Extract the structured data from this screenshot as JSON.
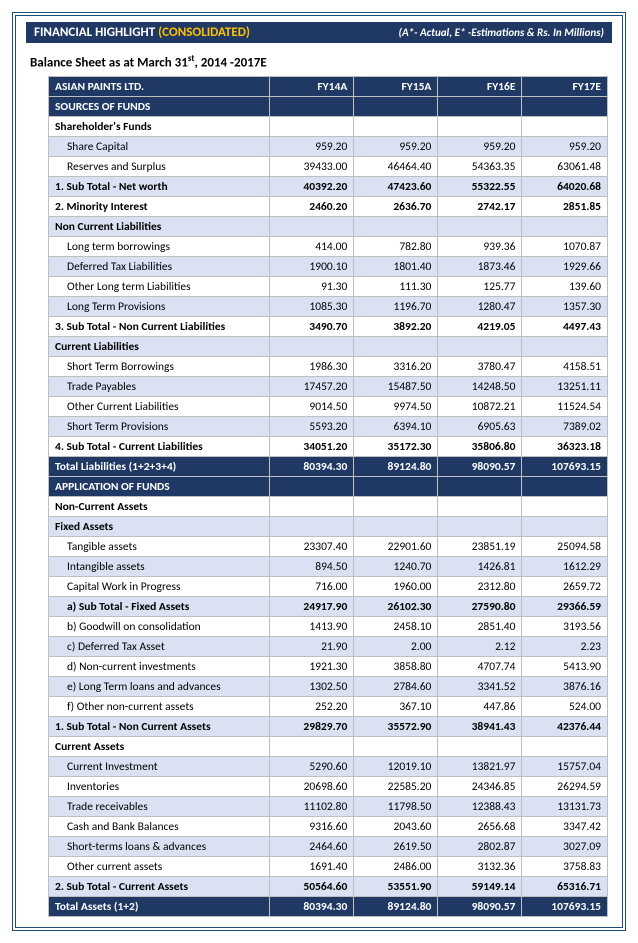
{
  "meta": {
    "title_left_main": "FINANCIAL HIGHLIGHT ",
    "title_left_yellow": "(CONSOLIDATED)",
    "title_right": "(A*- Actual, E* -Estimations & Rs. In Millions)",
    "subtitle_pre": "Balance Sheet as at March 31",
    "subtitle_sup": "st",
    "subtitle_post": ", 2014 -2017E"
  },
  "columns": [
    "FY14A",
    "FY15A",
    "FY16E",
    "FY17E"
  ],
  "company": "ASIAN PAINTS LTD.",
  "rows": [
    {
      "style": "section",
      "label": "SOURCES OF FUNDS",
      "vals": [
        "",
        "",
        "",
        ""
      ]
    },
    {
      "style": "bold",
      "label": "Shareholder's Funds",
      "vals": [
        "",
        "",
        "",
        ""
      ]
    },
    {
      "style": "alt",
      "indent": 1,
      "label": "Share Capital",
      "vals": [
        "959.20",
        "959.20",
        "959.20",
        "959.20"
      ]
    },
    {
      "style": "plain",
      "indent": 1,
      "label": "Reserves and Surplus",
      "vals": [
        "39433.00",
        "46464.40",
        "54363.35",
        "63061.48"
      ]
    },
    {
      "style": "bold alt",
      "label": "1. Sub Total - Net worth",
      "vals": [
        "40392.20",
        "47423.60",
        "55322.55",
        "64020.68"
      ]
    },
    {
      "style": "bold",
      "label": "2. Minority Interest",
      "vals": [
        "2460.20",
        "2636.70",
        "2742.17",
        "2851.85"
      ]
    },
    {
      "style": "bold alt",
      "label": "Non Current Liabilities",
      "vals": [
        "",
        "",
        "",
        ""
      ]
    },
    {
      "style": "plain",
      "indent": 1,
      "label": "Long term borrowings",
      "vals": [
        "414.00",
        "782.80",
        "939.36",
        "1070.87"
      ]
    },
    {
      "style": "alt",
      "indent": 1,
      "label": "Deferred Tax Liabilities",
      "vals": [
        "1900.10",
        "1801.40",
        "1873.46",
        "1929.66"
      ]
    },
    {
      "style": "plain",
      "indent": 1,
      "label": "Other Long term Liabilities",
      "vals": [
        "91.30",
        "111.30",
        "125.77",
        "139.60"
      ]
    },
    {
      "style": "alt",
      "indent": 1,
      "label": "Long Term Provisions",
      "vals": [
        "1085.30",
        "1196.70",
        "1280.47",
        "1357.30"
      ]
    },
    {
      "style": "bold",
      "label": "3. Sub Total - Non Current Liabilities",
      "vals": [
        "3490.70",
        "3892.20",
        "4219.05",
        "4497.43"
      ]
    },
    {
      "style": "bold alt",
      "label": "Current Liabilities",
      "vals": [
        "",
        "",
        "",
        ""
      ]
    },
    {
      "style": "plain",
      "indent": 1,
      "label": "Short Term Borrowings",
      "vals": [
        "1986.30",
        "3316.20",
        "3780.47",
        "4158.51"
      ]
    },
    {
      "style": "alt",
      "indent": 1,
      "label": "Trade Payables",
      "vals": [
        "17457.20",
        "15487.50",
        "14248.50",
        "13251.11"
      ]
    },
    {
      "style": "plain",
      "indent": 1,
      "label": "Other Current Liabilities",
      "vals": [
        "9014.50",
        "9974.50",
        "10872.21",
        "11524.54"
      ]
    },
    {
      "style": "alt",
      "indent": 1,
      "label": "Short Term Provisions",
      "vals": [
        "5593.20",
        "6394.10",
        "6905.63",
        "7389.02"
      ]
    },
    {
      "style": "bold",
      "label": "4. Sub Total - Current Liabilities",
      "vals": [
        "34051.20",
        "35172.30",
        "35806.80",
        "36323.18"
      ]
    },
    {
      "style": "total",
      "label": "Total Liabilities (1+2+3+4)",
      "vals": [
        "80394.30",
        "89124.80",
        "98090.57",
        "107693.15"
      ]
    },
    {
      "style": "section",
      "label": "APPLICATION OF FUNDS",
      "vals": [
        "",
        "",
        "",
        ""
      ]
    },
    {
      "style": "bold",
      "label": "Non-Current Assets",
      "vals": [
        "",
        "",
        "",
        ""
      ]
    },
    {
      "style": "bold alt",
      "label": "Fixed Assets",
      "vals": [
        "",
        "",
        "",
        ""
      ]
    },
    {
      "style": "plain",
      "indent": 1,
      "label": "Tangible assets",
      "vals": [
        "23307.40",
        "22901.60",
        "23851.19",
        "25094.58"
      ]
    },
    {
      "style": "alt",
      "indent": 1,
      "label": "Intangible assets",
      "vals": [
        "894.50",
        "1240.70",
        "1426.81",
        "1612.29"
      ]
    },
    {
      "style": "plain",
      "indent": 1,
      "label": "Capital Work in Progress",
      "vals": [
        "716.00",
        "1960.00",
        "2312.80",
        "2659.72"
      ]
    },
    {
      "style": "bold alt",
      "indent": 1,
      "label": "a) Sub Total - Fixed Assets",
      "vals": [
        "24917.90",
        "26102.30",
        "27590.80",
        "29366.59"
      ]
    },
    {
      "style": "plain",
      "indent": 1,
      "label": "b) Goodwill on consolidation",
      "vals": [
        "1413.90",
        "2458.10",
        "2851.40",
        "3193.56"
      ]
    },
    {
      "style": "alt",
      "indent": 1,
      "label": "c) Deferred Tax Asset",
      "vals": [
        "21.90",
        "2.00",
        "2.12",
        "2.23"
      ]
    },
    {
      "style": "plain",
      "indent": 1,
      "label": "d) Non-current investments",
      "vals": [
        "1921.30",
        "3858.80",
        "4707.74",
        "5413.90"
      ]
    },
    {
      "style": "alt",
      "indent": 1,
      "label": "e) Long Term loans and advances",
      "vals": [
        "1302.50",
        "2784.60",
        "3341.52",
        "3876.16"
      ]
    },
    {
      "style": "plain",
      "indent": 1,
      "label": "f) Other non-current assets",
      "vals": [
        "252.20",
        "367.10",
        "447.86",
        "524.00"
      ]
    },
    {
      "style": "bold alt",
      "label": "1. Sub Total - Non Current Assets",
      "vals": [
        "29829.70",
        "35572.90",
        "38941.43",
        "42376.44"
      ]
    },
    {
      "style": "bold",
      "label": "Current Assets",
      "vals": [
        "",
        "",
        "",
        ""
      ]
    },
    {
      "style": "alt",
      "indent": 1,
      "label": "Current Investment",
      "vals": [
        "5290.60",
        "12019.10",
        "13821.97",
        "15757.04"
      ]
    },
    {
      "style": "plain",
      "indent": 1,
      "label": "Inventories",
      "vals": [
        "20698.60",
        "22585.20",
        "24346.85",
        "26294.59"
      ]
    },
    {
      "style": "alt",
      "indent": 1,
      "label": "Trade receivables",
      "vals": [
        "11102.80",
        "11798.50",
        "12388.43",
        "13131.73"
      ]
    },
    {
      "style": "plain",
      "indent": 1,
      "label": "Cash and Bank Balances",
      "vals": [
        "9316.60",
        "2043.60",
        "2656.68",
        "3347.42"
      ]
    },
    {
      "style": "alt",
      "indent": 1,
      "label": "Short-terms loans & advances",
      "vals": [
        "2464.60",
        "2619.50",
        "2802.87",
        "3027.09"
      ]
    },
    {
      "style": "plain",
      "indent": 1,
      "label": "Other current assets",
      "vals": [
        "1691.40",
        "2486.00",
        "3132.36",
        "3758.83"
      ]
    },
    {
      "style": "bold alt",
      "label": "2. Sub Total - Current Assets",
      "vals": [
        "50564.60",
        "53551.90",
        "59149.14",
        "65316.71"
      ]
    },
    {
      "style": "total",
      "label": "Total Assets (1+2)",
      "vals": [
        "80394.30",
        "89124.80",
        "98090.57",
        "107693.15"
      ]
    }
  ],
  "colors": {
    "navy": "#1f3864",
    "band": "#d9e1f2",
    "yellow": "#ffc000",
    "border": "#bfbfbf"
  }
}
